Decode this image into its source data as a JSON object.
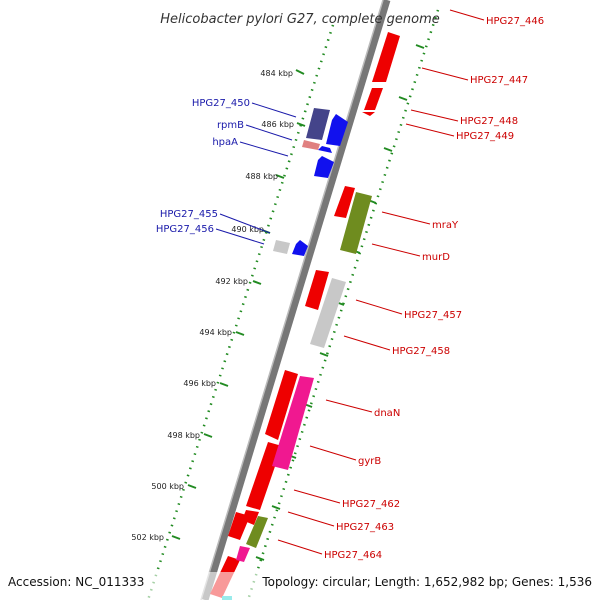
{
  "title": "Helicobacter pylori G27, complete genome",
  "accession": "Accession: NC_011333",
  "topology": "Topology: circular; Length: 1,652,982 bp; Genes: 1,536",
  "kbp_labels": [
    "484 kbp",
    "486 kbp",
    "488 kbp",
    "490 kbp",
    "492 kbp",
    "494 kbp",
    "496 kbp",
    "498 kbp",
    "500 kbp",
    "502 kbp"
  ],
  "left_labels": [
    "HPG27_450",
    "rpmB",
    "hpaA",
    "HPG27_455",
    "HPG27_456"
  ],
  "right_labels": [
    "HPG27_446",
    "HPG27_447",
    "HPG27_448",
    "HPG27_449",
    "mraY",
    "murD",
    "HPG27_457",
    "HPG27_458",
    "dnaN",
    "gyrB",
    "HPG27_462",
    "HPG27_463",
    "HPG27_464"
  ],
  "colors": {
    "gene_red": "#ee0000",
    "gene_blue": "#1111ee",
    "gene_navy": "#44448a",
    "gene_olive": "#6f8c1f",
    "gene_gray": "#c8c8c8",
    "gene_pink": "#f01890",
    "backbone": "#888888",
    "dots": "#228b22"
  }
}
